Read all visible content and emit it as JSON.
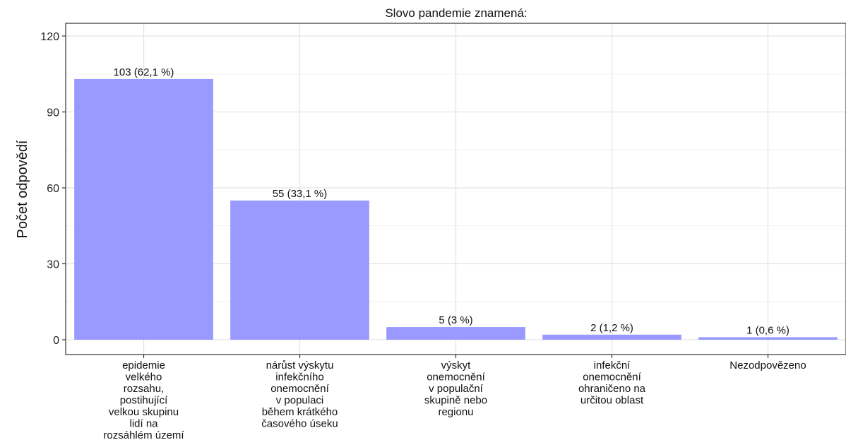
{
  "chart_data": {
    "type": "bar",
    "title": "Slovo pandemie znamená:",
    "ylabel": "Počet odpovědí",
    "xlabel": "",
    "ylim": [
      0,
      124
    ],
    "yticks": [
      0,
      30,
      60,
      90,
      120
    ],
    "grid": true,
    "bar_color": "#9999ff",
    "categories": [
      [
        "epidemie",
        "velkého",
        "rozsahu,",
        "postihující",
        "velkou skupinu",
        "lidí na",
        "rozsáhlém území"
      ],
      [
        "nárůst výskytu",
        "infekčního",
        "onemocnění",
        "v populaci",
        "během krátkého",
        "časového úseku"
      ],
      [
        "výskyt",
        "onemocnění",
        "v populační",
        "skupině nebo",
        "regionu"
      ],
      [
        "infekční",
        "onemocnění",
        "ohraničeno na",
        "určitou oblast"
      ],
      [
        "Nezodpovězeno"
      ]
    ],
    "values": [
      103,
      55,
      5,
      2,
      1
    ],
    "data_labels": [
      "103 (62,1 %)",
      "55 (33,1 %)",
      "5 (3 %)",
      "2 (1,2 %)",
      "1 (0,6 %)"
    ]
  }
}
